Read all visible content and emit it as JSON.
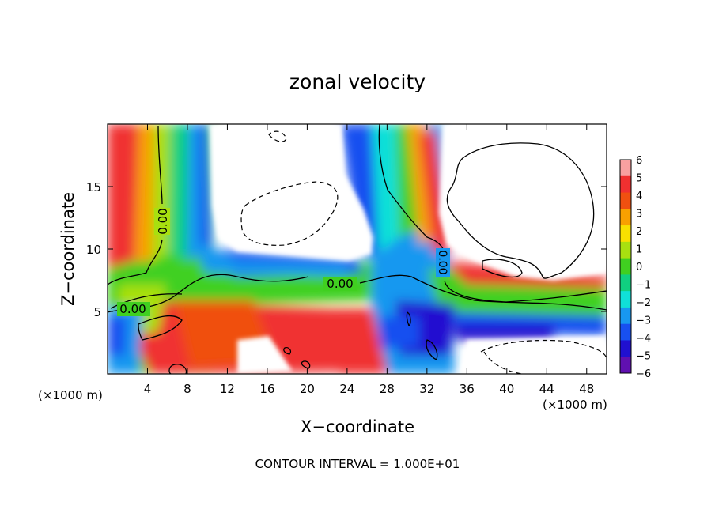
{
  "chart_data": {
    "type": "heatmap",
    "title": "zonal velocity",
    "xlabel": "X−coordinate",
    "ylabel": "Z−coordinate",
    "x_unit_label": "(×1000 m)",
    "y_unit_label": "(×1000 m)",
    "xlim": [
      0,
      50
    ],
    "ylim": [
      0,
      20
    ],
    "x_ticks": [
      4,
      8,
      12,
      16,
      20,
      24,
      28,
      32,
      36,
      40,
      44,
      48
    ],
    "y_ticks": [
      5,
      10,
      15
    ],
    "colorbar": {
      "levels": [
        6,
        5,
        4,
        3,
        2,
        1,
        0,
        -1,
        -2,
        -3,
        -4,
        -5,
        -6
      ],
      "level_labels": [
        "6",
        "5",
        "4",
        "3",
        "2",
        "1",
        "0",
        "−1",
        "−2",
        "−3",
        "−4",
        "−5",
        "−6"
      ],
      "colors": [
        "#f8a0a0",
        "#f03030",
        "#f05010",
        "#f8a000",
        "#f8e000",
        "#a8e010",
        "#40d020",
        "#10d080",
        "#10e0d8",
        "#1898f0",
        "#1850f0",
        "#2010d0",
        "#6010b0"
      ]
    },
    "contour_labels": [
      {
        "text": "0.00",
        "x": 4.3,
        "y": 12.4
      },
      {
        "text": "0.00",
        "x": 2.2,
        "y": 5.2
      },
      {
        "text": "0.00",
        "x": 23.6,
        "y": 7.0
      },
      {
        "text": "0.00",
        "x": 33.6,
        "y": 9.1
      }
    ],
    "footer": "CONTOUR INTERVAL = 1.000E+01"
  }
}
